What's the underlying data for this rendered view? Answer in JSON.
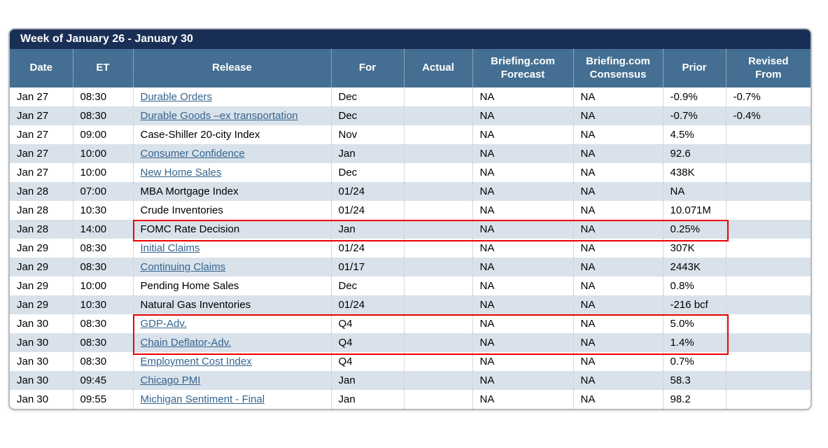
{
  "title": "Week of January 26 - January 30",
  "colors": {
    "title_bar_bg": "#1a2f55",
    "header_bg": "#446f92",
    "alt_row_bg": "#d9e2eb",
    "link_color": "#36648e",
    "highlight_border": "#ec0000"
  },
  "table": {
    "columns": [
      {
        "key": "date",
        "label": "Date"
      },
      {
        "key": "et",
        "label": "ET"
      },
      {
        "key": "release",
        "label": "Release"
      },
      {
        "key": "for",
        "label": "For"
      },
      {
        "key": "actual",
        "label": "Actual"
      },
      {
        "key": "forecast",
        "label": "Briefing.com\nForecast"
      },
      {
        "key": "consensus",
        "label": "Briefing.com\nConsensus"
      },
      {
        "key": "prior",
        "label": "Prior"
      },
      {
        "key": "revised",
        "label": "Revised\nFrom"
      }
    ],
    "rows": [
      {
        "date": "Jan 27",
        "et": "08:30",
        "release": "Durable Orders",
        "link": true,
        "for": "Dec",
        "actual": "",
        "forecast": "NA",
        "consensus": "NA",
        "prior": "-0.9%",
        "revised": "-0.7%"
      },
      {
        "date": "Jan 27",
        "et": "08:30",
        "release": "Durable Goods –ex transportation",
        "link": true,
        "for": "Dec",
        "actual": "",
        "forecast": "NA",
        "consensus": "NA",
        "prior": "-0.7%",
        "revised": "-0.4%"
      },
      {
        "date": "Jan 27",
        "et": "09:00",
        "release": "Case-Shiller 20-city Index",
        "link": false,
        "for": "Nov",
        "actual": "",
        "forecast": "NA",
        "consensus": "NA",
        "prior": "4.5%",
        "revised": ""
      },
      {
        "date": "Jan 27",
        "et": "10:00",
        "release": "Consumer Confidence",
        "link": true,
        "for": "Jan",
        "actual": "",
        "forecast": "NA",
        "consensus": "NA",
        "prior": "92.6",
        "revised": ""
      },
      {
        "date": "Jan 27",
        "et": "10:00",
        "release": "New Home Sales",
        "link": true,
        "for": "Dec",
        "actual": "",
        "forecast": "NA",
        "consensus": "NA",
        "prior": "438K",
        "revised": ""
      },
      {
        "date": "Jan 28",
        "et": "07:00",
        "release": "MBA Mortgage Index",
        "link": false,
        "for": "01/24",
        "actual": "",
        "forecast": "NA",
        "consensus": "NA",
        "prior": "NA",
        "revised": ""
      },
      {
        "date": "Jan 28",
        "et": "10:30",
        "release": "Crude Inventories",
        "link": false,
        "for": "01/24",
        "actual": "",
        "forecast": "NA",
        "consensus": "NA",
        "prior": "10.071M",
        "revised": ""
      },
      {
        "date": "Jan 28",
        "et": "14:00",
        "release": "FOMC Rate Decision",
        "link": false,
        "for": "Jan",
        "actual": "",
        "forecast": "NA",
        "consensus": "NA",
        "prior": "0.25%",
        "revised": ""
      },
      {
        "date": "Jan 29",
        "et": "08:30",
        "release": "Initial Claims",
        "link": true,
        "for": "01/24",
        "actual": "",
        "forecast": "NA",
        "consensus": "NA",
        "prior": "307K",
        "revised": ""
      },
      {
        "date": "Jan 29",
        "et": "08:30",
        "release": "Continuing Claims",
        "link": true,
        "for": "01/17",
        "actual": "",
        "forecast": "NA",
        "consensus": "NA",
        "prior": "2443K",
        "revised": ""
      },
      {
        "date": "Jan 29",
        "et": "10:00",
        "release": "Pending Home Sales",
        "link": false,
        "for": "Dec",
        "actual": "",
        "forecast": "NA",
        "consensus": "NA",
        "prior": "0.8%",
        "revised": ""
      },
      {
        "date": "Jan 29",
        "et": "10:30",
        "release": "Natural Gas Inventories",
        "link": false,
        "for": "01/24",
        "actual": "",
        "forecast": "NA",
        "consensus": "NA",
        "prior": "-216 bcf",
        "revised": ""
      },
      {
        "date": "Jan 30",
        "et": "08:30",
        "release": "GDP-Adv.",
        "link": true,
        "for": "Q4",
        "actual": "",
        "forecast": "NA",
        "consensus": "NA",
        "prior": "5.0%",
        "revised": ""
      },
      {
        "date": "Jan 30",
        "et": "08:30",
        "release": "Chain Deflator-Adv.",
        "link": true,
        "for": "Q4",
        "actual": "",
        "forecast": "NA",
        "consensus": "NA",
        "prior": "1.4%",
        "revised": ""
      },
      {
        "date": "Jan 30",
        "et": "08:30",
        "release": "Employment Cost Index",
        "link": true,
        "for": "Q4",
        "actual": "",
        "forecast": "NA",
        "consensus": "NA",
        "prior": "0.7%",
        "revised": ""
      },
      {
        "date": "Jan 30",
        "et": "09:45",
        "release": "Chicago PMI",
        "link": true,
        "for": "Jan",
        "actual": "",
        "forecast": "NA",
        "consensus": "NA",
        "prior": "58.3",
        "revised": ""
      },
      {
        "date": "Jan 30",
        "et": "09:55",
        "release": "Michigan Sentiment - Final",
        "link": true,
        "for": "Jan",
        "actual": "",
        "forecast": "NA",
        "consensus": "NA",
        "prior": "98.2",
        "revised": ""
      }
    ],
    "highlights": [
      {
        "from_row": 7,
        "to_row": 7,
        "from_col": 2,
        "to_col": 7
      },
      {
        "from_row": 12,
        "to_row": 13,
        "from_col": 2,
        "to_col": 7
      }
    ]
  }
}
